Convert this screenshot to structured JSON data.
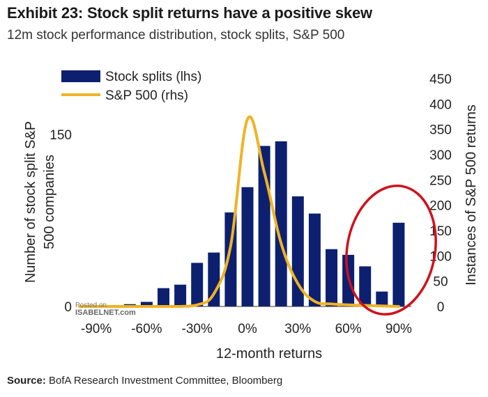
{
  "header": {
    "title": "Exhibit 23: Stock split returns have a positive skew",
    "subtitle": "12m stock performance distribution, stock splits, S&P 500"
  },
  "footer": {
    "source_label": "Source:",
    "source_text": " BofA Research Investment Committee, Bloomberg"
  },
  "watermark": {
    "line1": "Posted on",
    "line2": "ISABELNET.com"
  },
  "chart_data": {
    "type": "bar",
    "x": [
      -100,
      -90,
      -80,
      -70,
      -60,
      -50,
      -40,
      -30,
      -20,
      -10,
      0,
      10,
      20,
      30,
      40,
      50,
      60,
      70,
      80,
      90
    ],
    "series": [
      {
        "name": "Stock splits (lhs)",
        "axis": "left",
        "kind": "bar",
        "color": "#0d2070",
        "values": [
          0,
          0,
          1,
          2,
          4,
          16,
          19,
          38,
          47,
          82,
          104,
          140,
          144,
          96,
          81,
          50,
          45,
          35,
          13,
          73
        ]
      },
      {
        "name": "S&P 500 (rhs)",
        "axis": "right",
        "kind": "line",
        "color": "#f0b323",
        "values": [
          0,
          0,
          0,
          0,
          0,
          0,
          0,
          3,
          25,
          120,
          370,
          265,
          125,
          45,
          10,
          5,
          3,
          2,
          1,
          0
        ]
      }
    ],
    "xlabel": "12-month returns",
    "ylabel_left": "Number of stock split S&P 500 companies",
    "ylabel_right": "Instances of S&P 500 returns",
    "x_ticks": [
      "-90%",
      "-60%",
      "-30%",
      "0%",
      "30%",
      "60%",
      "90%"
    ],
    "x_tick_values": [
      -90,
      -60,
      -30,
      0,
      30,
      60,
      90
    ],
    "y_left_ticks": [
      "0",
      "150"
    ],
    "y_left_tick_values": [
      0,
      150
    ],
    "ylim_left": [
      0,
      155
    ],
    "y_right_ticks": [
      "0",
      "50",
      "100",
      "150",
      "200",
      "250",
      "300",
      "350",
      "400",
      "450"
    ],
    "y_right_tick_values": [
      0,
      50,
      100,
      150,
      200,
      250,
      300,
      350,
      400,
      450
    ],
    "ylim_right": [
      0,
      450
    ],
    "legend": [
      "Stock splits (lhs)",
      "S&P 500 (rhs)"
    ],
    "legend_position": "top-left",
    "annotation": "red ellipse highlighting right tail",
    "highlight_color": "#d0111b"
  }
}
